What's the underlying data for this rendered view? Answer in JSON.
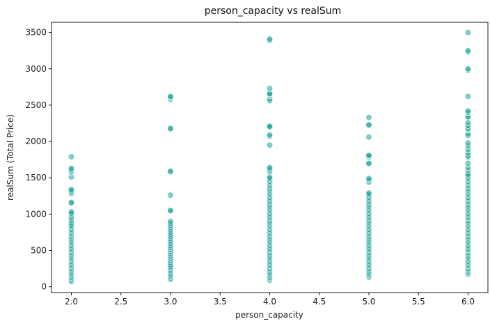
{
  "chart_data": {
    "type": "scatter",
    "title": "person_capacity vs realSum",
    "xlabel": "person_capacity",
    "ylabel": "realSum (Total Price)",
    "xlim": [
      1.8,
      6.2
    ],
    "ylim": [
      -80,
      3640
    ],
    "xticks": [
      "2.0",
      "2.5",
      "3.0",
      "3.5",
      "4.0",
      "4.5",
      "5.0",
      "5.5",
      "6.0"
    ],
    "xtick_values": [
      2.0,
      2.5,
      3.0,
      3.5,
      4.0,
      4.5,
      5.0,
      5.5,
      6.0
    ],
    "yticks": [
      "0",
      "500",
      "1000",
      "1500",
      "2000",
      "2500",
      "3000",
      "3500"
    ],
    "ytick_values": [
      0,
      500,
      1000,
      1500,
      2000,
      2500,
      3000,
      3500
    ],
    "grid": false,
    "legend": "none",
    "marker_color": "#17a398",
    "marker_edge_color": "#ffffff",
    "marker_alpha": 0.55,
    "series": [
      {
        "x": 2.0,
        "y": [
          70,
          90,
          110,
          130,
          150,
          170,
          190,
          210,
          230,
          250,
          270,
          290,
          310,
          330,
          350,
          370,
          390,
          410,
          430,
          450,
          470,
          490,
          510,
          530,
          550,
          570,
          590,
          610,
          630,
          650,
          670,
          690,
          710,
          730,
          750,
          770,
          790,
          810,
          830,
          850,
          880,
          910,
          940,
          960,
          990,
          1010,
          1030,
          1150,
          1160,
          1280,
          1300,
          1320,
          1340,
          1510,
          1580,
          1610,
          1630,
          1790
        ]
      },
      {
        "x": 3.0,
        "y": [
          100,
          120,
          140,
          160,
          180,
          200,
          220,
          240,
          260,
          280,
          300,
          330,
          360,
          390,
          420,
          450,
          480,
          510,
          540,
          570,
          600,
          630,
          660,
          690,
          720,
          750,
          780,
          810,
          840,
          870,
          900,
          1040,
          1050,
          1260,
          1580,
          1590,
          2170,
          2180,
          2580,
          2610,
          2620
        ]
      },
      {
        "x": 4.0,
        "y": [
          90,
          110,
          130,
          150,
          170,
          190,
          210,
          230,
          250,
          270,
          290,
          310,
          330,
          350,
          370,
          390,
          410,
          430,
          450,
          470,
          490,
          510,
          530,
          550,
          570,
          590,
          610,
          630,
          650,
          670,
          690,
          710,
          730,
          750,
          770,
          790,
          810,
          830,
          850,
          870,
          890,
          910,
          930,
          950,
          970,
          990,
          1010,
          1030,
          1050,
          1070,
          1090,
          1110,
          1130,
          1150,
          1170,
          1190,
          1210,
          1230,
          1250,
          1270,
          1290,
          1310,
          1330,
          1350,
          1370,
          1390,
          1410,
          1430,
          1450,
          1470,
          1490,
          1510,
          1580,
          1600,
          1620,
          1640,
          1950,
          2070,
          2090,
          2190,
          2200,
          2210,
          2560,
          2580,
          2630,
          2650,
          2660,
          2730,
          3390,
          3410
        ]
      },
      {
        "x": 5.0,
        "y": [
          130,
          150,
          170,
          190,
          210,
          230,
          250,
          270,
          290,
          310,
          330,
          350,
          370,
          390,
          410,
          430,
          450,
          470,
          490,
          510,
          530,
          550,
          570,
          590,
          610,
          630,
          650,
          670,
          690,
          710,
          730,
          750,
          770,
          790,
          810,
          830,
          850,
          870,
          890,
          910,
          930,
          950,
          970,
          990,
          1010,
          1030,
          1050,
          1070,
          1090,
          1110,
          1130,
          1150,
          1170,
          1190,
          1210,
          1230,
          1250,
          1270,
          1290,
          1440,
          1470,
          1490,
          1690,
          1700,
          1780,
          1800,
          1810,
          2060,
          2220,
          2230,
          2330
        ]
      },
      {
        "x": 6.0,
        "y": [
          170,
          190,
          210,
          230,
          250,
          270,
          290,
          310,
          330,
          350,
          370,
          390,
          410,
          430,
          450,
          470,
          490,
          510,
          530,
          550,
          570,
          590,
          610,
          630,
          650,
          670,
          690,
          710,
          730,
          750,
          770,
          790,
          810,
          830,
          850,
          870,
          890,
          910,
          930,
          950,
          970,
          990,
          1010,
          1030,
          1050,
          1070,
          1090,
          1110,
          1130,
          1150,
          1170,
          1190,
          1210,
          1230,
          1250,
          1270,
          1290,
          1310,
          1330,
          1350,
          1370,
          1390,
          1410,
          1430,
          1450,
          1470,
          1490,
          1510,
          1530,
          1550,
          1600,
          1640,
          1700,
          1780,
          1800,
          1840,
          1890,
          1940,
          1980,
          2080,
          2100,
          2160,
          2180,
          2220,
          2260,
          2320,
          2340,
          2400,
          2420,
          2620,
          2980,
          3000,
          3230,
          3250,
          3500
        ]
      }
    ]
  }
}
